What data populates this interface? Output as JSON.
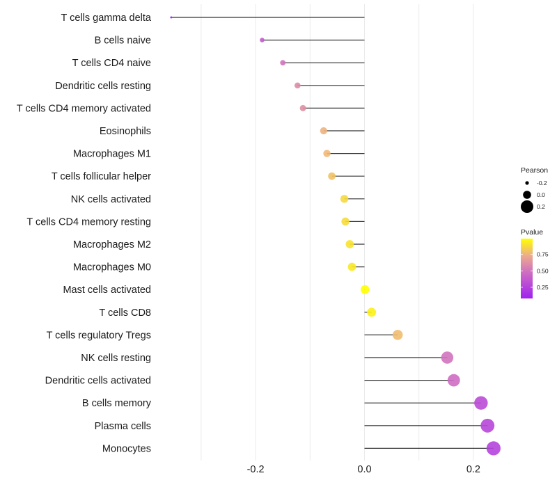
{
  "chart_data": {
    "type": "lollipop",
    "title": "",
    "xlabel": "",
    "ylabel": "",
    "xlim": [
      -0.375,
      0.26
    ],
    "x_ticks": [
      -0.2,
      0.0,
      0.2
    ],
    "x_tick_labels": [
      "-0.2",
      "0.0",
      "0.2"
    ],
    "x_minor_gridlines": [
      -0.3,
      -0.1,
      0.1
    ],
    "grid": true,
    "baseline": 0.0,
    "categories": [
      "T cells gamma delta",
      "B cells naive",
      "T cells CD4 naive",
      "Dendritic cells resting",
      "T cells CD4 memory activated",
      "Eosinophils",
      "Macrophages M1",
      "T cells follicular helper",
      "NK cells activated",
      "T cells CD4 memory resting",
      "Macrophages M2",
      "Macrophages M0",
      "Mast cells activated",
      "T cells CD8",
      "T cells regulatory  Tregs ",
      "NK cells resting",
      "Dendritic cells activated",
      "B cells memory",
      "Plasma cells",
      "Monocytes"
    ],
    "series": [
      {
        "name": "Pearson",
        "values": [
          -0.355,
          -0.188,
          -0.15,
          -0.123,
          -0.113,
          -0.075,
          -0.069,
          -0.06,
          -0.037,
          -0.035,
          -0.027,
          -0.023,
          0.001,
          0.013,
          0.061,
          0.152,
          0.164,
          0.214,
          0.226,
          0.237
        ]
      },
      {
        "name": "Pvalue",
        "values": [
          0.08,
          0.38,
          0.5,
          0.6,
          0.62,
          0.75,
          0.77,
          0.8,
          0.87,
          0.88,
          0.9,
          0.92,
          0.99,
          0.95,
          0.78,
          0.5,
          0.47,
          0.3,
          0.28,
          0.26
        ]
      }
    ],
    "legend": {
      "position": "right",
      "size_legend": {
        "title": "Pearson",
        "entries": [
          "-0.2",
          "0.0",
          "0.2"
        ],
        "values": [
          -0.2,
          0.0,
          0.2
        ]
      },
      "color_legend": {
        "title": "Pvalue",
        "ticks": [
          0.25,
          0.5,
          0.75
        ],
        "tick_labels": [
          "0.25",
          "0.50",
          "0.75"
        ],
        "range": [
          0.08,
          0.99
        ],
        "low_color": "#a020f0",
        "high_color": "#ffff00"
      }
    }
  }
}
